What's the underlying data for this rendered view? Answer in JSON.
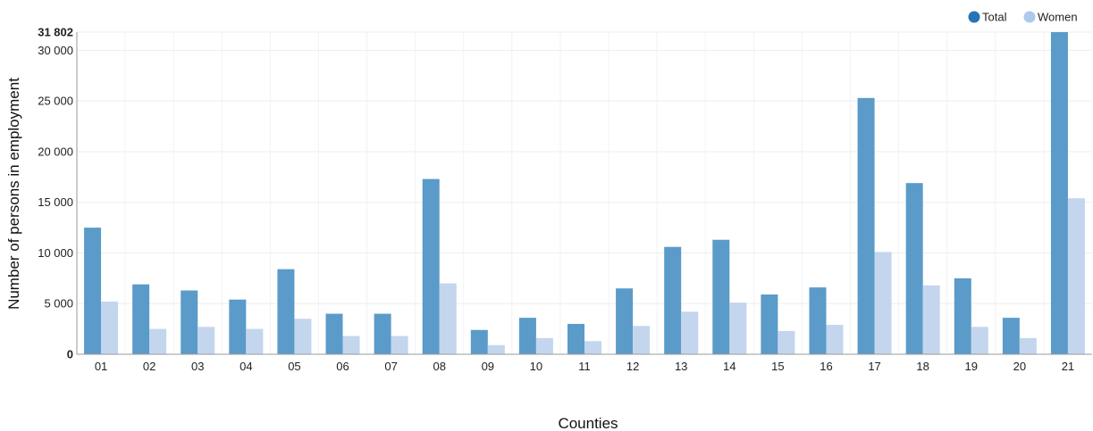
{
  "chart_data": {
    "type": "bar",
    "categories": [
      "01",
      "02",
      "03",
      "04",
      "05",
      "06",
      "07",
      "08",
      "09",
      "10",
      "11",
      "12",
      "13",
      "14",
      "15",
      "16",
      "17",
      "18",
      "19",
      "20",
      "21"
    ],
    "series": [
      {
        "name": "Total",
        "color": "#5b9bc9",
        "values": [
          12500,
          6900,
          6300,
          5400,
          8400,
          4000,
          4000,
          17300,
          2400,
          3600,
          3000,
          6500,
          10600,
          11300,
          5900,
          6600,
          25300,
          16900,
          7500,
          3600,
          31802
        ]
      },
      {
        "name": "Women",
        "color": "#c3d6ee",
        "values": [
          5200,
          2500,
          2700,
          2500,
          3500,
          1800,
          1800,
          7000,
          900,
          1600,
          1300,
          2800,
          4200,
          5100,
          2300,
          2900,
          10100,
          6800,
          2700,
          1600,
          15400
        ]
      }
    ],
    "xlabel": "Counties",
    "ylabel": "Number of persons in employment",
    "ylim": [
      0,
      31802
    ],
    "yticks": [
      {
        "value": 0,
        "label": "0"
      },
      {
        "value": 5000,
        "label": "5 000"
      },
      {
        "value": 10000,
        "label": "10 000"
      },
      {
        "value": 15000,
        "label": "15 000"
      },
      {
        "value": 20000,
        "label": "20 000"
      },
      {
        "value": 25000,
        "label": "25 000"
      },
      {
        "value": 30000,
        "label": "30 000"
      },
      {
        "value": 31802,
        "label": "31 802"
      }
    ],
    "grid": true,
    "legend": {
      "placement": "top-right",
      "items": [
        {
          "label": "Total",
          "color": "#2475b7"
        },
        {
          "label": "Women",
          "color": "#aec9ec"
        }
      ]
    }
  }
}
